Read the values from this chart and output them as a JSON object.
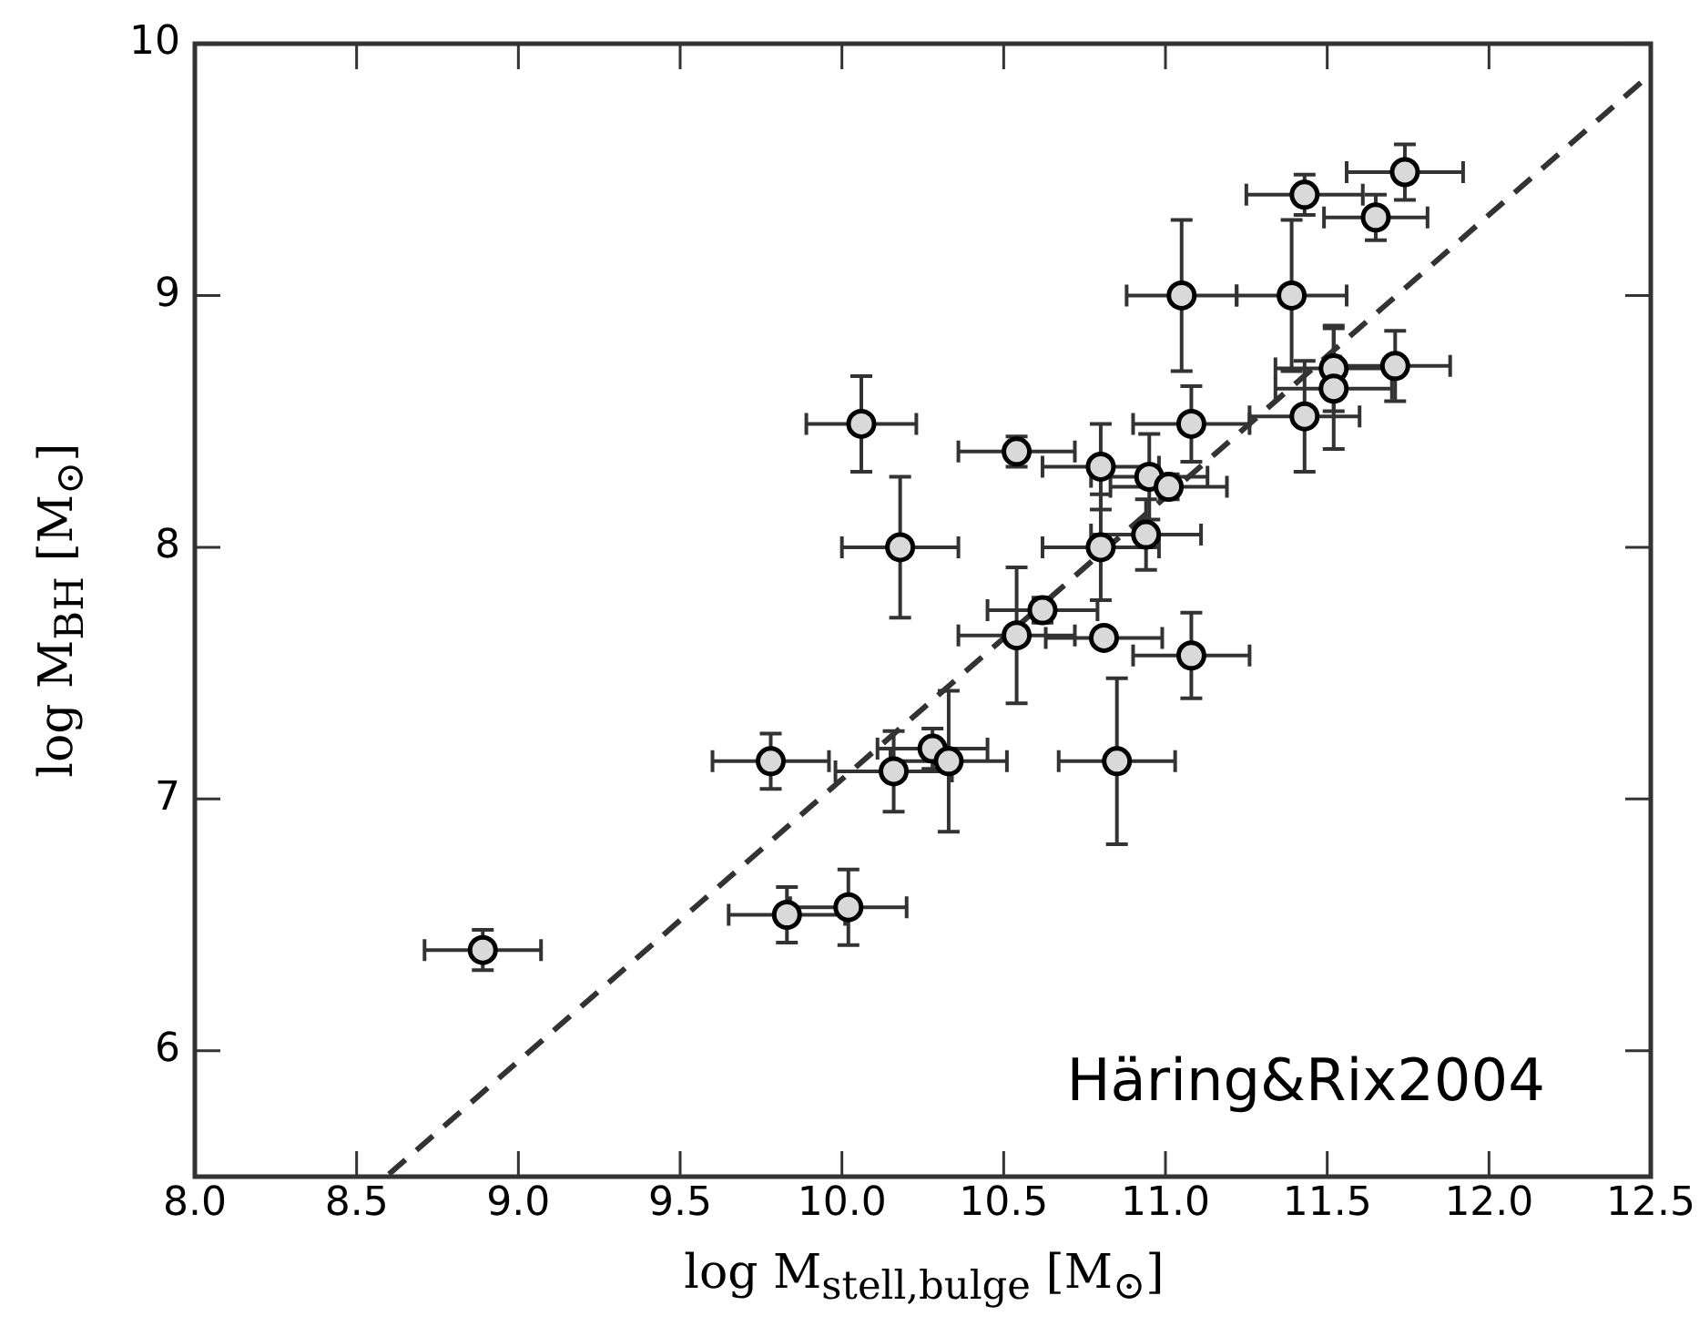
{
  "chart_data": {
    "type": "scatter",
    "xlabel": "log M$_{stell,bulge}$  [M$_{⊙}$]",
    "ylabel": "log M$_{BH}$  [M$_{⊙}$]",
    "annotations": [
      "Häring&Rix2004"
    ],
    "xlim": [
      8.0,
      12.5
    ],
    "xticks": [
      {
        "value": 8,
        "label": "8.0"
      },
      {
        "value": 8.5,
        "label": "8.5"
      },
      {
        "value": 9,
        "label": "9.0"
      },
      {
        "value": 9.5,
        "label": "9.5"
      },
      {
        "value": 10,
        "label": "10.0"
      },
      {
        "value": 10.5,
        "label": "10.5"
      },
      {
        "value": 11,
        "label": "11.0"
      },
      {
        "value": 11.5,
        "label": "11.5"
      },
      {
        "value": 12,
        "label": "12.0"
      },
      {
        "value": 12.5,
        "label": "12.5"
      }
    ],
    "ylim": [
      5.5,
      10
    ],
    "yticks": [
      6,
      7,
      8,
      9,
      10
    ],
    "grid": false,
    "legend": false,
    "marker": "circle",
    "series": [
      {
        "type": "scatter",
        "color": "#d9d9d9",
        "x": [
          8.89,
          9.78,
          9.83,
          10.02,
          10.16,
          10.28,
          10.33,
          10.06,
          10.18,
          10.54,
          10.8,
          10.95,
          11.01,
          10.8,
          10.94,
          10.62,
          10.54,
          10.81,
          11.08,
          10.85,
          11.43,
          11.74,
          11.65,
          11.05,
          11.39,
          11.52,
          11.52,
          11.71,
          11.43,
          11.08
        ],
        "values": [
          6.4,
          7.15,
          6.54,
          6.57,
          7.11,
          7.2,
          7.15,
          8.49,
          8.0,
          8.38,
          8.32,
          8.28,
          8.24,
          8.0,
          8.05,
          7.75,
          7.65,
          7.64,
          7.57,
          7.15,
          9.4,
          9.49,
          9.31,
          9.0,
          9.0,
          8.71,
          8.63,
          8.72,
          8.52,
          8.49
        ],
        "xerrors": [
          0.18,
          0.18,
          0.18,
          0.18,
          0.18,
          0.17,
          0.18,
          0.17,
          0.18,
          0.18,
          0.18,
          0.18,
          0.18,
          0.18,
          0.17,
          0.17,
          0.18,
          0.18,
          0.18,
          0.18,
          0.18,
          0.18,
          0.16,
          0.17,
          0.17,
          0.18,
          0.18,
          0.17,
          0.17,
          0.18
        ],
        "errors": [
          0.08,
          0.11,
          0.11,
          0.15,
          0.16,
          0.08,
          0.28,
          0.19,
          0.28,
          0.06,
          0.17,
          0.17,
          0.05,
          0.21,
          0.14,
          0.05,
          0.27,
          0.03,
          0.17,
          0.33,
          0.08,
          0.11,
          0.09,
          0.3,
          0.3,
          0.17,
          0.24,
          0.14,
          0.22,
          0.15
        ]
      },
      {
        "type": "line",
        "color": "#333333",
        "x": [
          8.6,
          12.5
        ],
        "values": [
          5.51,
          9.88
        ],
        "line_style": "dashed",
        "marker": "none"
      }
    ]
  }
}
